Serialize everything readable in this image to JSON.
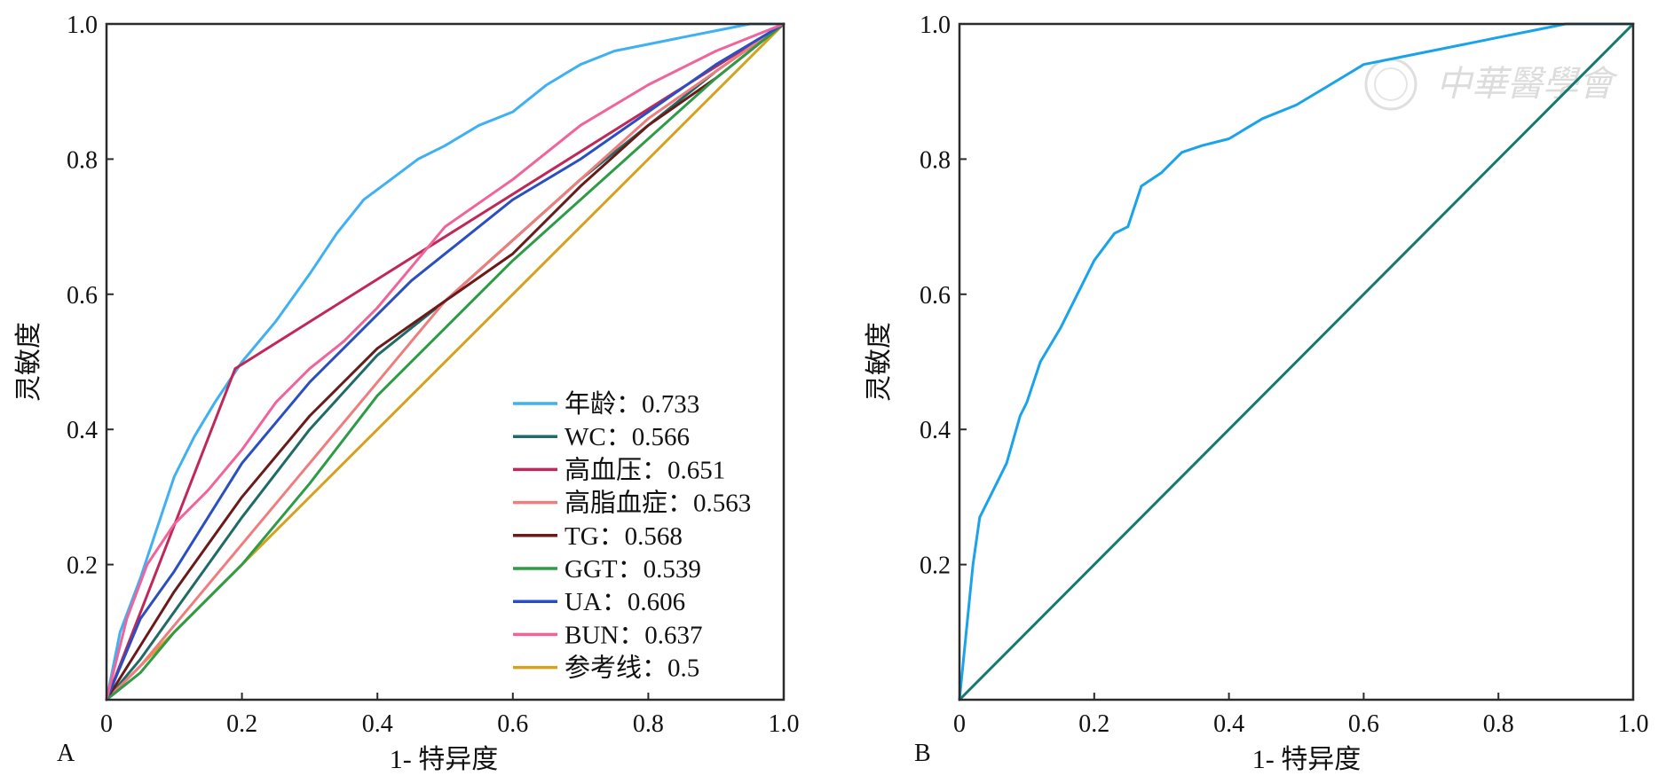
{
  "chart_data": [
    {
      "panel": "A",
      "type": "line",
      "xlabel": "1- 特异度",
      "ylabel": "灵敏度",
      "xlim": [
        0,
        1
      ],
      "ylim": [
        0,
        1
      ],
      "x_ticks": [
        "0",
        "0.2",
        "0.4",
        "0.6",
        "0.8",
        "1.0"
      ],
      "y_ticks": [
        "0.2",
        "0.4",
        "0.6",
        "0.8",
        "1.0"
      ],
      "grid": false,
      "legend_position": "bottom-right",
      "series": [
        {
          "name": "年龄",
          "label": "年龄：0.733",
          "auc": 0.733,
          "color": "#3fb1f2",
          "x": [
            0,
            0.02,
            0.05,
            0.08,
            0.1,
            0.13,
            0.16,
            0.2,
            0.25,
            0.3,
            0.34,
            0.38,
            0.42,
            0.46,
            0.5,
            0.55,
            0.6,
            0.65,
            0.7,
            0.75,
            0.8,
            0.85,
            0.9,
            0.95,
            1.0
          ],
          "y": [
            0,
            0.1,
            0.18,
            0.27,
            0.33,
            0.39,
            0.44,
            0.5,
            0.56,
            0.63,
            0.69,
            0.74,
            0.77,
            0.8,
            0.82,
            0.85,
            0.87,
            0.91,
            0.94,
            0.96,
            0.97,
            0.98,
            0.99,
            1.0,
            1.0
          ]
        },
        {
          "name": "WC",
          "label": "WC：0.566",
          "auc": 0.566,
          "color": "#1f6b66",
          "x": [
            0,
            0.05,
            0.1,
            0.2,
            0.3,
            0.4,
            0.5,
            0.6,
            0.7,
            0.8,
            0.9,
            1.0
          ],
          "y": [
            0,
            0.06,
            0.13,
            0.27,
            0.4,
            0.51,
            0.59,
            0.68,
            0.77,
            0.85,
            0.93,
            1.0
          ]
        },
        {
          "name": "高血压",
          "label": "高血压：0.651",
          "auc": 0.651,
          "color": "#c0285a",
          "x": [
            0,
            0.19,
            1.0
          ],
          "y": [
            0,
            0.49,
            1.0
          ]
        },
        {
          "name": "高脂血症",
          "label": "高脂血症：0.563",
          "auc": 0.563,
          "color": "#f07d7d",
          "x": [
            0,
            0.05,
            0.1,
            0.2,
            0.3,
            0.4,
            0.5,
            0.6,
            0.7,
            0.8,
            0.9,
            1.0
          ],
          "y": [
            0,
            0.05,
            0.11,
            0.23,
            0.35,
            0.47,
            0.59,
            0.68,
            0.77,
            0.86,
            0.93,
            1.0
          ]
        },
        {
          "name": "TG",
          "label": "TG：0.568",
          "auc": 0.568,
          "color": "#6b1a1a",
          "x": [
            0,
            0.05,
            0.1,
            0.2,
            0.3,
            0.4,
            0.5,
            0.6,
            0.7,
            0.8,
            0.9,
            1.0
          ],
          "y": [
            0,
            0.08,
            0.16,
            0.3,
            0.42,
            0.52,
            0.59,
            0.66,
            0.76,
            0.85,
            0.92,
            1.0
          ]
        },
        {
          "name": "GGT",
          "label": "GGT：0.539",
          "auc": 0.539,
          "color": "#2e9b47",
          "x": [
            0,
            0.05,
            0.1,
            0.2,
            0.3,
            0.4,
            0.5,
            0.6,
            0.7,
            0.8,
            0.9,
            1.0
          ],
          "y": [
            0,
            0.04,
            0.1,
            0.2,
            0.32,
            0.45,
            0.55,
            0.65,
            0.74,
            0.83,
            0.92,
            1.0
          ]
        },
        {
          "name": "UA",
          "label": "UA：0.606",
          "auc": 0.606,
          "color": "#2a4fc2",
          "x": [
            0,
            0.05,
            0.1,
            0.15,
            0.2,
            0.25,
            0.3,
            0.35,
            0.4,
            0.45,
            0.5,
            0.6,
            0.7,
            0.8,
            0.9,
            1.0
          ],
          "y": [
            0,
            0.12,
            0.19,
            0.27,
            0.35,
            0.41,
            0.47,
            0.52,
            0.57,
            0.62,
            0.66,
            0.74,
            0.8,
            0.87,
            0.94,
            1.0
          ]
        },
        {
          "name": "BUN",
          "label": "BUN：0.637",
          "auc": 0.637,
          "color": "#f0649b",
          "x": [
            0,
            0.03,
            0.06,
            0.1,
            0.15,
            0.2,
            0.25,
            0.3,
            0.35,
            0.4,
            0.45,
            0.5,
            0.6,
            0.7,
            0.8,
            0.9,
            1.0
          ],
          "y": [
            0,
            0.12,
            0.2,
            0.26,
            0.31,
            0.37,
            0.44,
            0.49,
            0.53,
            0.58,
            0.64,
            0.7,
            0.77,
            0.85,
            0.91,
            0.96,
            1.0
          ]
        },
        {
          "name": "参考线",
          "label": "参考线：0.5",
          "auc": 0.5,
          "color": "#d4a21e",
          "x": [
            0,
            1.0
          ],
          "y": [
            0,
            1.0
          ]
        }
      ]
    },
    {
      "panel": "B",
      "type": "line",
      "xlabel": "1- 特异度",
      "ylabel": "灵敏度",
      "xlim": [
        0,
        1
      ],
      "ylim": [
        0,
        1
      ],
      "x_ticks": [
        "0",
        "0.2",
        "0.4",
        "0.6",
        "0.8",
        "1.0"
      ],
      "y_ticks": [
        "0.2",
        "0.4",
        "0.6",
        "0.8",
        "1.0"
      ],
      "grid": false,
      "series": [
        {
          "color": "#1aa3ea",
          "x": [
            0,
            0.01,
            0.02,
            0.03,
            0.05,
            0.07,
            0.09,
            0.1,
            0.12,
            0.15,
            0.18,
            0.2,
            0.23,
            0.25,
            0.27,
            0.3,
            0.33,
            0.36,
            0.4,
            0.45,
            0.5,
            0.55,
            0.6,
            0.65,
            0.7,
            0.75,
            0.8,
            0.85,
            0.9,
            0.95,
            1.0
          ],
          "y": [
            0,
            0.1,
            0.2,
            0.27,
            0.31,
            0.35,
            0.42,
            0.44,
            0.5,
            0.55,
            0.61,
            0.65,
            0.69,
            0.7,
            0.76,
            0.78,
            0.81,
            0.82,
            0.83,
            0.86,
            0.88,
            0.91,
            0.94,
            0.95,
            0.96,
            0.97,
            0.98,
            0.99,
            1.0,
            1.0,
            1.0
          ]
        },
        {
          "color": "#157a6e",
          "x": [
            0,
            1.0
          ],
          "y": [
            0,
            1.0
          ]
        }
      ]
    }
  ],
  "watermark": {
    "text": "中華醫學會"
  }
}
